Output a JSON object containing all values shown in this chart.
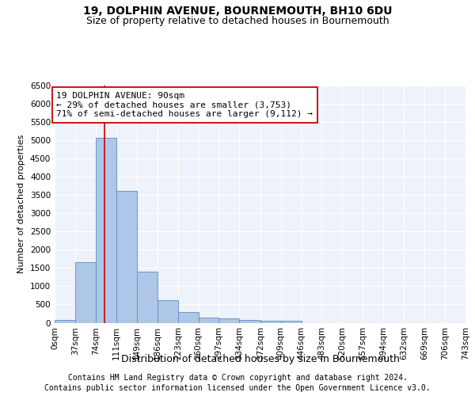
{
  "title1": "19, DOLPHIN AVENUE, BOURNEMOUTH, BH10 6DU",
  "title2": "Size of property relative to detached houses in Bournemouth",
  "xlabel": "Distribution of detached houses by size in Bournemouth",
  "ylabel": "Number of detached properties",
  "bin_edges": [
    0,
    37,
    74,
    111,
    149,
    186,
    223,
    260,
    297,
    334,
    372,
    409,
    446,
    483,
    520,
    557,
    594,
    632,
    669,
    706,
    743
  ],
  "bar_heights": [
    75,
    1650,
    5060,
    3600,
    1400,
    620,
    290,
    150,
    110,
    75,
    60,
    55,
    0,
    0,
    0,
    0,
    0,
    0,
    0,
    0
  ],
  "bar_color": "#aec6e8",
  "bar_edge_color": "#5a8fc0",
  "property_size": 90,
  "vline_color": "#cc0000",
  "annotation_line1": "19 DOLPHIN AVENUE: 90sqm",
  "annotation_line2": "← 29% of detached houses are smaller (3,753)",
  "annotation_line3": "71% of semi-detached houses are larger (9,112) →",
  "annotation_box_color": "#ffffff",
  "annotation_box_edge_color": "#cc0000",
  "ylim": [
    0,
    6500
  ],
  "yticks": [
    0,
    500,
    1000,
    1500,
    2000,
    2500,
    3000,
    3500,
    4000,
    4500,
    5000,
    5500,
    6000,
    6500
  ],
  "footer1": "Contains HM Land Registry data © Crown copyright and database right 2024.",
  "footer2": "Contains public sector information licensed under the Open Government Licence v3.0.",
  "bg_color": "#eef2fa",
  "grid_color": "#ffffff",
  "title1_fontsize": 10,
  "title2_fontsize": 9,
  "xlabel_fontsize": 9,
  "ylabel_fontsize": 8,
  "tick_fontsize": 7.5,
  "annotation_fontsize": 8,
  "footer_fontsize": 7
}
